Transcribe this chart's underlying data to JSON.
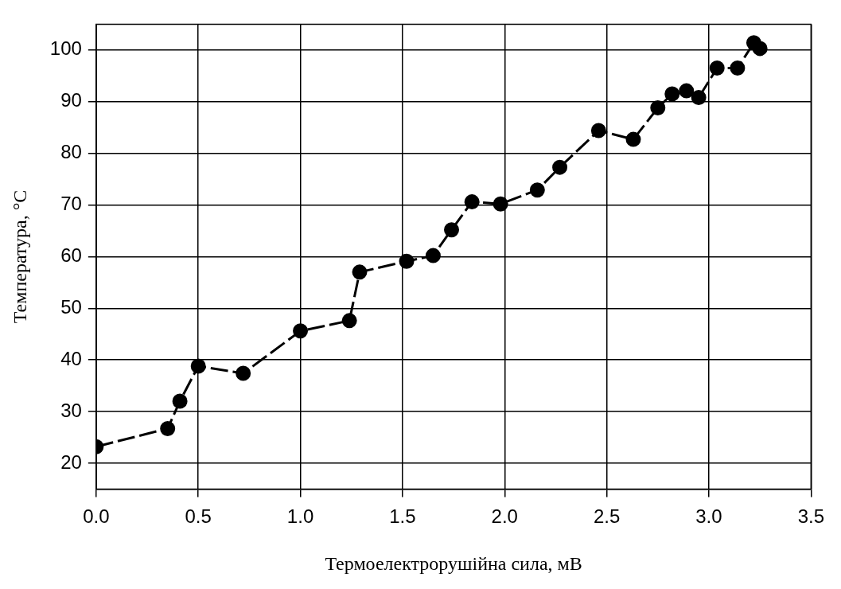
{
  "chart_data": {
    "type": "line",
    "xlabel": "Термоелектрорушійна сила, мВ",
    "ylabel": "Температура, °C",
    "xlim": [
      0,
      3.5
    ],
    "xticks": [
      {
        "value": 0,
        "label": "0.0"
      },
      {
        "value": 0.5,
        "label": "0.5"
      },
      {
        "value": 1,
        "label": "1.0"
      },
      {
        "value": 1.5,
        "label": "1.5"
      },
      {
        "value": 2,
        "label": "2.0"
      },
      {
        "value": 2.5,
        "label": "2.5"
      },
      {
        "value": 3,
        "label": "3.0"
      },
      {
        "value": 3.5,
        "label": "3.5"
      }
    ],
    "ylim": [
      15,
      105
    ],
    "yticks": [
      20,
      30,
      40,
      50,
      60,
      70,
      80,
      90,
      100
    ],
    "grid": true,
    "legend": false,
    "marker": "circle",
    "line_style": "dashed",
    "series": [
      {
        "color": "#000000",
        "x": [
          0,
          0.35,
          0.41,
          0.5,
          0.72,
          1.0,
          1.24,
          1.29,
          1.52,
          1.65,
          1.74,
          1.84,
          1.98,
          2.16,
          2.27,
          2.46,
          2.63,
          2.75,
          2.82,
          2.89,
          2.95,
          3.04,
          3.14,
          3.22,
          3.25
        ],
        "values": [
          23.2,
          26.7,
          32.0,
          38.8,
          37.4,
          45.6,
          47.6,
          57.0,
          59.1,
          60.2,
          65.2,
          70.6,
          70.2,
          72.9,
          77.3,
          84.4,
          82.7,
          88.8,
          91.5,
          92.1,
          90.8,
          96.5,
          96.5,
          101.4,
          100.3
        ]
      }
    ]
  }
}
